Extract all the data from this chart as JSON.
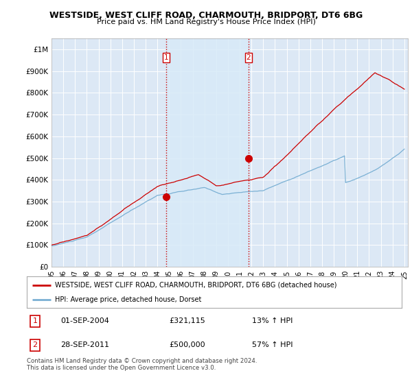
{
  "title": "WESTSIDE, WEST CLIFF ROAD, CHARMOUTH, BRIDPORT, DT6 6BG",
  "subtitle": "Price paid vs. HM Land Registry's House Price Index (HPI)",
  "ylabel_ticks": [
    "£0",
    "£100K",
    "£200K",
    "£300K",
    "£400K",
    "£500K",
    "£600K",
    "£700K",
    "£800K",
    "£900K",
    "£1M"
  ],
  "ytick_values": [
    0,
    100000,
    200000,
    300000,
    400000,
    500000,
    600000,
    700000,
    800000,
    900000,
    1000000
  ],
  "ylim": [
    0,
    1050000
  ],
  "x_start_year": 1995,
  "x_end_year": 2025,
  "background_color": "#ffffff",
  "plot_bg_color": "#dce8f5",
  "shade_color": "#cce0f5",
  "grid_color": "#ffffff",
  "sale1_price": 321115,
  "sale1_x": 2004.75,
  "sale2_price": 500000,
  "sale2_x": 2011.75,
  "vline_color": "#cc0000",
  "red_line_color": "#cc0000",
  "blue_line_color": "#7ab0d4",
  "legend_label_red": "WESTSIDE, WEST CLIFF ROAD, CHARMOUTH, BRIDPORT, DT6 6BG (detached house)",
  "legend_label_blue": "HPI: Average price, detached house, Dorset",
  "footnote": "Contains HM Land Registry data © Crown copyright and database right 2024.\nThis data is licensed under the Open Government Licence v3.0.",
  "table_rows": [
    {
      "label": "1",
      "date": "01-SEP-2004",
      "price": "£321,115",
      "hpi": "13% ↑ HPI"
    },
    {
      "label": "2",
      "date": "28-SEP-2011",
      "price": "£500,000",
      "hpi": "57% ↑ HPI"
    }
  ]
}
